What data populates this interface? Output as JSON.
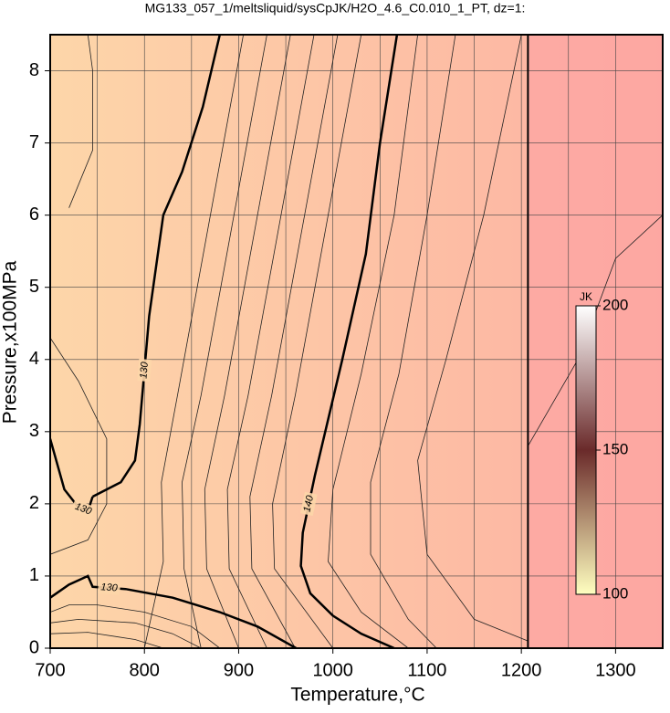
{
  "chart_data": {
    "type": "contour",
    "title": "MG133_057_1/meltsliquid/sysCpJK/H2O_4.6_C0.010_1_PT, dz=1:",
    "xlabel": "Temperature,°C",
    "ylabel": "Pressure,x100MPa",
    "xlim": [
      700,
      1350
    ],
    "ylim": [
      0,
      8.5
    ],
    "xticks": [
      700,
      800,
      900,
      1000,
      1100,
      1200,
      1300
    ],
    "yticks": [
      0,
      1,
      2,
      3,
      4,
      5,
      6,
      7,
      8
    ],
    "xminorticks": [
      750,
      850,
      950,
      1050,
      1150,
      1250
    ],
    "grid": true,
    "background": [
      "#fdd6a9",
      "#fdb0a2"
    ],
    "vline": 1207,
    "vline_fill": "#fca4a2",
    "contours": [
      {
        "level": 130,
        "x": [
          880,
          862,
          840,
          820,
          805,
          795,
          790,
          775,
          760,
          745
        ],
        "y": [
          8.5,
          7.5,
          6.6,
          6.0,
          4.6,
          3.1,
          2.6,
          2.3,
          2.2,
          2.1
        ]
      },
      {
        "level": 130,
        "x": [
          745,
          740,
          730,
          715,
          700
        ],
        "y": [
          2.1,
          1.9,
          1.95,
          2.2,
          2.9
        ]
      },
      {
        "level": 130,
        "x": [
          700,
          720,
          740,
          745,
          780,
          830,
          880,
          920,
          961
        ],
        "y": [
          0.7,
          0.88,
          1.0,
          0.85,
          0.82,
          0.7,
          0.5,
          0.3,
          0
        ]
      },
      {
        "level": 140,
        "x": [
          1068,
          1050,
          1035,
          1010,
          981,
          968,
          966,
          976,
          1000,
          1030,
          1065
        ],
        "y": [
          8.5,
          7.0,
          5.46,
          4.0,
          2.4,
          1.6,
          1.14,
          0.76,
          0.45,
          0.2,
          0
        ]
      }
    ],
    "thin_lines": [
      {
        "x": [
          905,
          870,
          835,
          818,
          820,
          800
        ],
        "y": [
          8.5,
          6.0,
          3.5,
          2.3,
          1.2,
          0
        ]
      },
      {
        "x": [
          930,
          895,
          860,
          840,
          842,
          860
        ],
        "y": [
          8.5,
          6.0,
          3.5,
          2.3,
          1.1,
          0
        ]
      },
      {
        "x": [
          955,
          920,
          885,
          864,
          866,
          900
        ],
        "y": [
          8.5,
          6.0,
          3.5,
          2.2,
          1.1,
          0
        ]
      },
      {
        "x": [
          980,
          945,
          910,
          888,
          890,
          930
        ],
        "y": [
          8.5,
          6.0,
          3.5,
          2.2,
          1.1,
          0
        ]
      },
      {
        "x": [
          1005,
          970,
          935,
          912,
          914,
          960
        ],
        "y": [
          8.5,
          6.0,
          3.5,
          2.1,
          1.1,
          0
        ]
      },
      {
        "x": [
          1030,
          995,
          960,
          936,
          938,
          1000
        ],
        "y": [
          8.5,
          6.0,
          3.5,
          2.0,
          1.1,
          0
        ]
      },
      {
        "x": [
          1090,
          1065,
          1030,
          1000,
          995,
          1030,
          1080
        ],
        "y": [
          8.5,
          6.0,
          3.8,
          2.2,
          1.2,
          0.5,
          0
        ]
      },
      {
        "x": [
          1130,
          1100,
          1070,
          1040,
          1040,
          1080,
          1110
        ],
        "y": [
          8.5,
          6.0,
          3.8,
          2.3,
          1.3,
          0.4,
          0
        ]
      },
      {
        "x": [
          1200,
          1160,
          1120,
          1090,
          1100,
          1150,
          1207
        ],
        "y": [
          8.5,
          6.0,
          4.0,
          2.6,
          1.3,
          0.4,
          0.1
        ]
      },
      {
        "x": [
          1207,
          1260,
          1300,
          1350
        ],
        "y": [
          2.8,
          4.0,
          5.4,
          6.0
        ]
      },
      {
        "x": [
          700,
          730,
          760,
          760,
          740,
          700
        ],
        "y": [
          4.3,
          3.7,
          2.9,
          2.0,
          1.5,
          1.3
        ]
      },
      {
        "x": [
          700,
          720,
          750,
          800,
          850,
          880
        ],
        "y": [
          0.5,
          0.6,
          0.6,
          0.5,
          0.3,
          0
        ]
      },
      {
        "x": [
          700,
          730,
          790,
          830,
          860
        ],
        "y": [
          0.35,
          0.4,
          0.35,
          0.2,
          0
        ]
      },
      {
        "x": [
          700,
          740,
          790,
          820
        ],
        "y": [
          0.2,
          0.22,
          0.12,
          0
        ]
      },
      {
        "x": [
          720,
          745,
          745,
          740
        ],
        "y": [
          6.1,
          6.9,
          8.0,
          8.5
        ]
      }
    ],
    "colorbar": {
      "label": "JK",
      "lim": [
        100,
        200
      ],
      "ticks": [
        100,
        150,
        200
      ],
      "colors": [
        "#ffffc0",
        "#6a2a2a",
        "#ffffff"
      ]
    }
  }
}
